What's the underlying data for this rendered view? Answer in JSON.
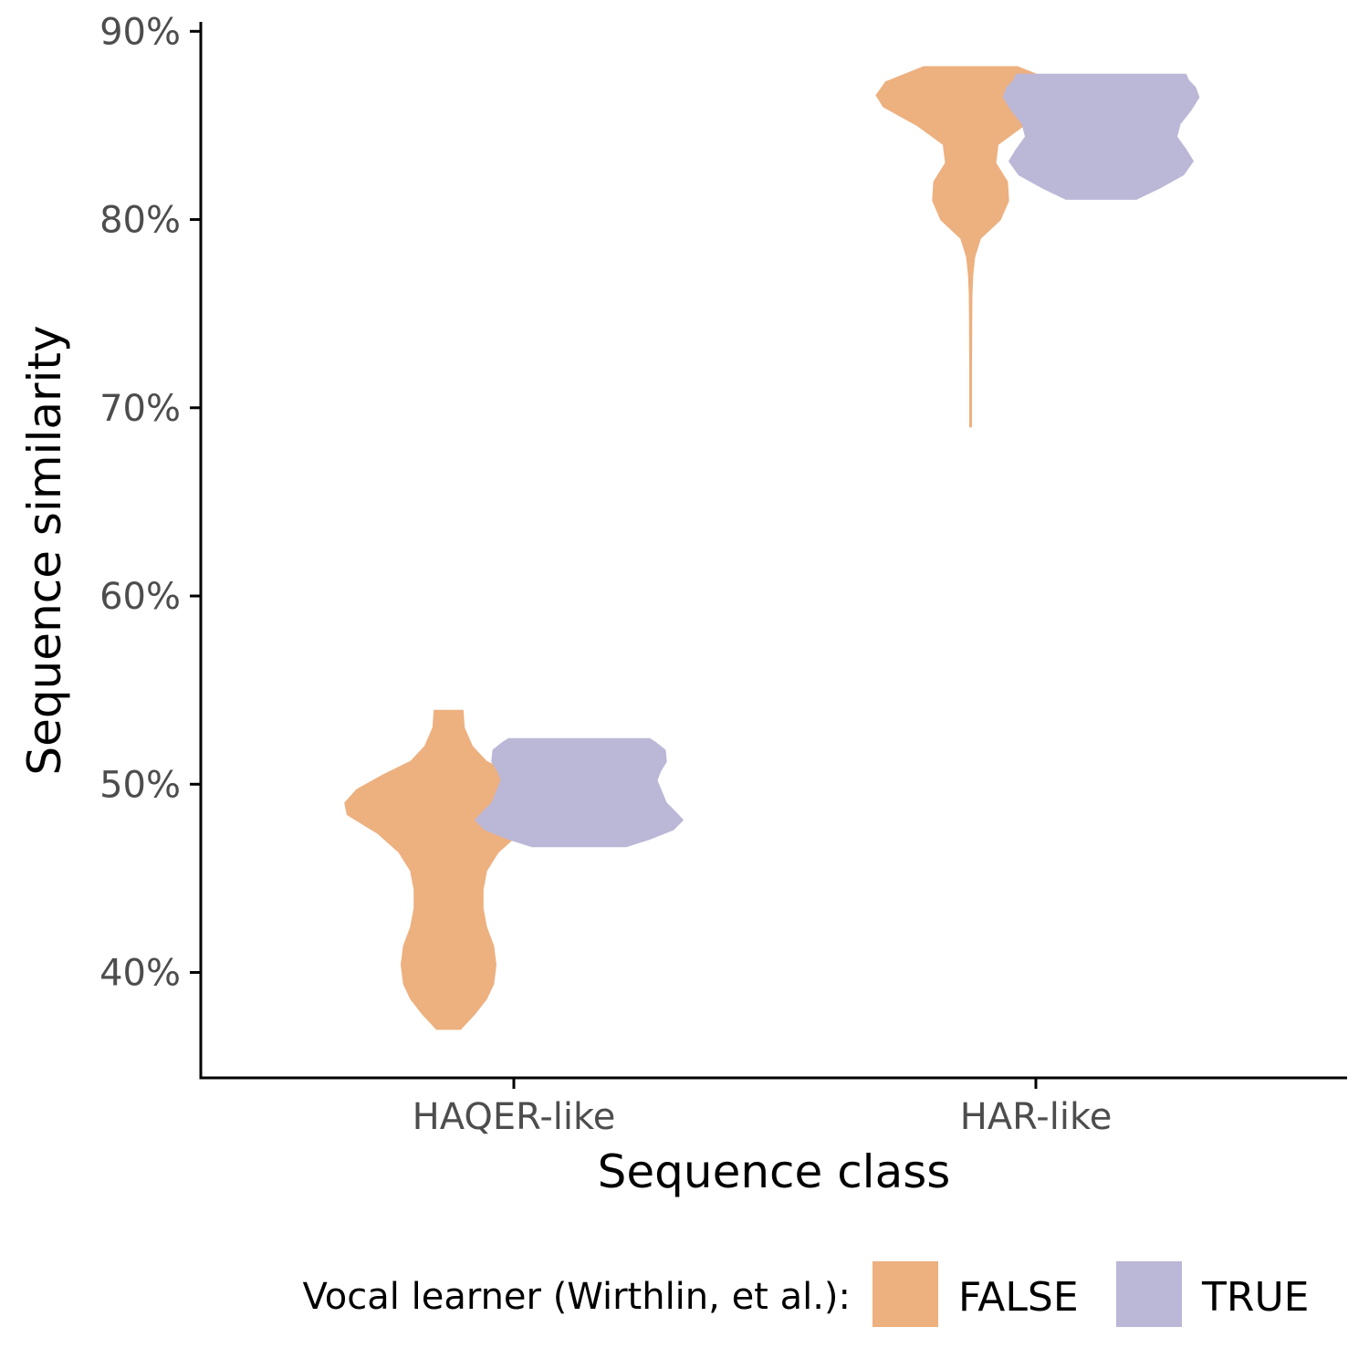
{
  "chart_data": {
    "type": "violin",
    "xlabel": "Sequence class",
    "ylabel": "Sequence similarity",
    "categories": [
      "HAQER-like",
      "HAR-like"
    ],
    "ylim": [
      0.344,
      0.905
    ],
    "y_ticks": [
      0.4,
      0.5,
      0.6,
      0.7,
      0.8,
      0.9
    ],
    "y_tick_labels": [
      "40%",
      "50%",
      "60%",
      "70%",
      "80%",
      "90%"
    ],
    "grid": false,
    "legend": {
      "title": "Vocal learner (Wirthlin, et al.):",
      "position": "bottom",
      "entries": [
        {
          "label": "FALSE",
          "color": "#EDB07F"
        },
        {
          "label": "TRUE",
          "color": "#BBB7D7"
        }
      ]
    },
    "series": [
      {
        "name": "FALSE",
        "color": "#EDB07F",
        "violins": [
          {
            "category": "HAQER-like",
            "min": 0.37,
            "max": 0.539,
            "profile": [
              [
                0.37,
                0.1
              ],
              [
                0.378,
                0.22
              ],
              [
                0.386,
                0.32
              ],
              [
                0.394,
                0.38
              ],
              [
                0.404,
                0.4
              ],
              [
                0.414,
                0.38
              ],
              [
                0.424,
                0.32
              ],
              [
                0.434,
                0.29
              ],
              [
                0.444,
                0.29
              ],
              [
                0.454,
                0.32
              ],
              [
                0.464,
                0.42
              ],
              [
                0.474,
                0.6
              ],
              [
                0.484,
                0.86
              ],
              [
                0.49,
                0.88
              ],
              [
                0.497,
                0.78
              ],
              [
                0.505,
                0.55
              ],
              [
                0.512,
                0.32
              ],
              [
                0.52,
                0.2
              ],
              [
                0.53,
                0.13
              ],
              [
                0.539,
                0.12
              ]
            ]
          },
          {
            "category": "HAR-like",
            "min": 0.69,
            "max": 0.881,
            "profile": [
              [
                0.69,
                0.004
              ],
              [
                0.72,
                0.004
              ],
              [
                0.75,
                0.006
              ],
              [
                0.76,
                0.008
              ],
              [
                0.77,
                0.014
              ],
              [
                0.78,
                0.03
              ],
              [
                0.79,
                0.08
              ],
              [
                0.8,
                0.25
              ],
              [
                0.81,
                0.32
              ],
              [
                0.82,
                0.31
              ],
              [
                0.83,
                0.21
              ],
              [
                0.84,
                0.23
              ],
              [
                0.85,
                0.45
              ],
              [
                0.86,
                0.74
              ],
              [
                0.866,
                0.8
              ],
              [
                0.873,
                0.72
              ],
              [
                0.881,
                0.4
              ]
            ]
          }
        ]
      },
      {
        "name": "TRUE",
        "color": "#BBB7D7",
        "violins": [
          {
            "category": "HAQER-like",
            "min": 0.467,
            "max": 0.524,
            "profile": [
              [
                0.467,
                0.4
              ],
              [
                0.471,
                0.6
              ],
              [
                0.476,
                0.8
              ],
              [
                0.481,
                0.88
              ],
              [
                0.485,
                0.82
              ],
              [
                0.49,
                0.74
              ],
              [
                0.496,
                0.7
              ],
              [
                0.502,
                0.66
              ],
              [
                0.507,
                0.69
              ],
              [
                0.512,
                0.74
              ],
              [
                0.518,
                0.73
              ],
              [
                0.522,
                0.65
              ],
              [
                0.524,
                0.6
              ]
            ]
          },
          {
            "category": "HAR-like",
            "min": 0.811,
            "max": 0.877,
            "profile": [
              [
                0.811,
                0.3
              ],
              [
                0.817,
                0.5
              ],
              [
                0.824,
                0.7
              ],
              [
                0.831,
                0.78
              ],
              [
                0.837,
                0.72
              ],
              [
                0.844,
                0.64
              ],
              [
                0.851,
                0.67
              ],
              [
                0.858,
                0.76
              ],
              [
                0.865,
                0.83
              ],
              [
                0.87,
                0.8
              ],
              [
                0.874,
                0.74
              ],
              [
                0.877,
                0.72
              ]
            ]
          }
        ]
      }
    ]
  }
}
